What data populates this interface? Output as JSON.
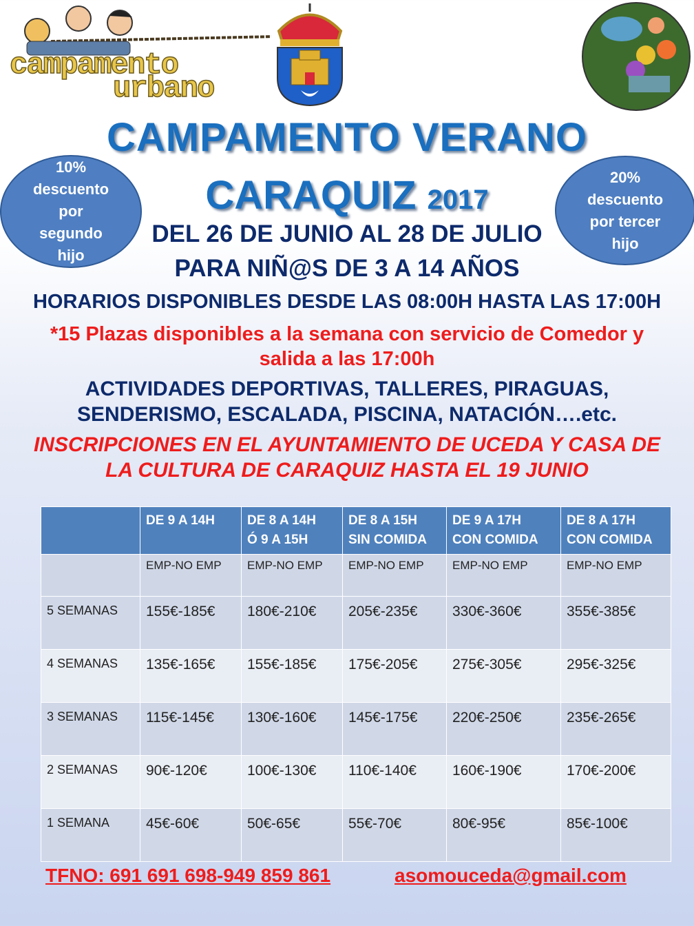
{
  "logos": {
    "left_logo_text": [
      "campamento",
      "urbano"
    ],
    "crest": "municipal-coat-of-arms",
    "right_image": "children-explorers-illustration"
  },
  "title": {
    "line1": "CAMPAMENTO VERANO",
    "line2": "CARAQUIZ",
    "year": "2017"
  },
  "dates": "DEL 26 DE JUNIO AL 28 DE JULIO",
  "ages": "PARA NIÑ@S DE 3 A 14 AÑOS",
  "discounts": {
    "left": [
      "10%",
      "descuento",
      "por",
      "segundo",
      "hijo"
    ],
    "right": [
      "20%",
      "descuento",
      "por tercer",
      "hijo"
    ]
  },
  "schedule": "HORARIOS DISPONIBLES DESDE LAS 08:00H HASTA LAS 17:00H",
  "plazas": [
    "*15 Plazas disponibles a la semana con servicio de Comedor y",
    "salida a las 17:00h"
  ],
  "activities": [
    "ACTIVIDADES DEPORTIVAS, TALLERES, PIRAGUAS,",
    "SENDERISMO, ESCALADA, PISCINA, NATACIÓN….etc."
  ],
  "inscriptions": [
    "INSCRIPCIONES EN EL AYUNTAMIENTO DE UCEDA Y  CASA DE",
    "LA CULTURA DE CARAQUIZ HASTA EL 19 JUNIO"
  ],
  "table": {
    "headers": [
      "",
      [
        "DE 9 A 14H"
      ],
      [
        "DE 8 A 14H",
        "Ó 9 A 15H"
      ],
      [
        "DE 8 A 15H",
        "SIN COMIDA"
      ],
      [
        "DE 9 A 17H",
        "CON COMIDA"
      ],
      [
        "DE 8 A 17H",
        "CON COMIDA"
      ]
    ],
    "subheader": [
      "",
      "EMP-NO EMP",
      "EMP-NO EMP",
      "EMP-NO EMP",
      "EMP-NO EMP",
      "EMP-NO EMP"
    ],
    "rows": [
      [
        "5 SEMANAS",
        "155€-185€",
        "180€-210€",
        "205€-235€",
        "330€-360€",
        "355€-385€"
      ],
      [
        "4 SEMANAS",
        "135€-165€",
        "155€-185€",
        "175€-205€",
        "275€-305€",
        "295€-325€"
      ],
      [
        "3 SEMANAS",
        "115€-145€",
        "130€-160€",
        "145€-175€",
        "220€-250€",
        "235€-265€"
      ],
      [
        "2 SEMANAS",
        "90€-120€",
        "100€-130€",
        "110€-140€",
        "160€-190€",
        "170€-200€"
      ],
      [
        "1 SEMANA",
        "45€-60€",
        "50€-65€",
        "55€-70€",
        "80€-95€",
        "85€-100€"
      ]
    ]
  },
  "contact": {
    "phone": "TFNO: 691 691 698-949 859 861 ",
    "email": "asomouceda@gmail.com"
  },
  "colors": {
    "title_blue": "#1a6fbf",
    "navy": "#0d2a6b",
    "red": "#ee1c1c",
    "table_header": "#4f81bd",
    "bubble": "#4f7fc2"
  }
}
